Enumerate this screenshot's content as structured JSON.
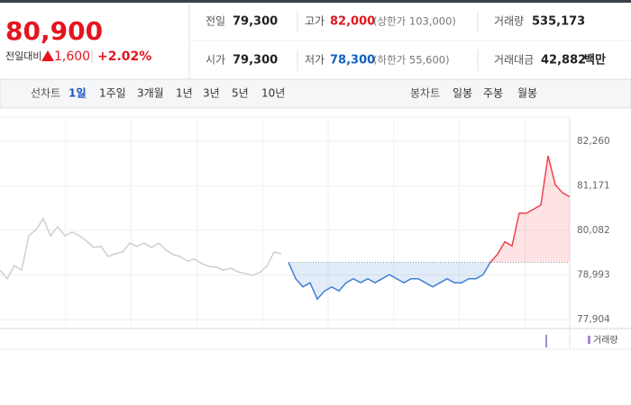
{
  "quote": {
    "price": "80,900",
    "change_label": "전일대비",
    "change": "1,600",
    "change_rate": "+2.02%"
  },
  "summary": [
    {
      "label": "전일",
      "value": "79,300"
    },
    {
      "label": "고가",
      "value": "82,000",
      "note": "(상한가 103,000)"
    },
    {
      "label": "거래량",
      "value": "535,173"
    },
    {
      "label": "시가",
      "value": "79,300"
    },
    {
      "label": "저가",
      "value": "78,300",
      "note": "(하한가 55,600)"
    },
    {
      "label": "거래대금",
      "value": "42,882",
      "unit": "백만"
    }
  ],
  "tabs": {
    "line_label": "선차트",
    "periods": [
      "1일",
      "1주일",
      "3개월",
      "1년",
      "3년",
      "5년",
      "10년"
    ],
    "candle_label": "봉차트",
    "candles": [
      "일봉",
      "주봉",
      "월봉"
    ]
  },
  "volume_legend": "거래량",
  "chart_data": {
    "type": "line",
    "series": [
      {
        "color": "#cfcfcf",
        "values": [
          79110,
          78900,
          79220,
          79110,
          79950,
          80100,
          80370,
          79950,
          80170,
          79950,
          80040,
          79950,
          79820,
          79660,
          79690,
          79440,
          79510,
          79550,
          79770,
          79690,
          79770,
          79660,
          79770,
          79600,
          79490,
          79440,
          79330,
          79380,
          79270,
          79200,
          79180,
          79110,
          79160,
          79070,
          79030,
          78980,
          79050,
          79200,
          79550,
          79510,
          null,
          null,
          null,
          null,
          null,
          null,
          null,
          null,
          null,
          null,
          null,
          null,
          null,
          null,
          null,
          null,
          null,
          null,
          null,
          null,
          null,
          null,
          null,
          null,
          null,
          null,
          null,
          null,
          null,
          null,
          null,
          null,
          null,
          null,
          null,
          null,
          null,
          null,
          null,
          null
        ]
      },
      {
        "color": "#f0424c",
        "values": [
          null,
          null,
          null,
          null,
          null,
          null,
          null,
          null,
          null,
          null,
          null,
          null,
          null,
          null,
          null,
          null,
          null,
          null,
          null,
          null,
          null,
          null,
          null,
          null,
          null,
          null,
          null,
          null,
          null,
          null,
          null,
          null,
          null,
          null,
          null,
          null,
          null,
          null,
          null,
          null,
          79300,
          78900,
          78700,
          78800,
          78400,
          78600,
          78700,
          78600,
          78800,
          78900,
          78800,
          78900,
          78800,
          78900,
          79000,
          78900,
          78800,
          78900,
          78900,
          78800,
          78700,
          78800,
          78900,
          78800,
          78800,
          78900,
          78900,
          79000,
          79300,
          79500,
          79800,
          79700,
          80500,
          80500,
          80600,
          80700,
          81900,
          81200,
          81000,
          80900
        ]
      }
    ],
    "down_color": "#3f7fd6",
    "reference_line": 79300,
    "ylim": [
      77750,
      82850
    ],
    "yticks": [
      {
        "value": 77904,
        "label": "77,904"
      },
      {
        "value": 78993,
        "label": "78,993"
      },
      {
        "value": 80082,
        "label": "80,082"
      },
      {
        "value": 81171,
        "label": "81,171"
      },
      {
        "value": 82260,
        "label": "82,260"
      }
    ],
    "grid": true
  }
}
